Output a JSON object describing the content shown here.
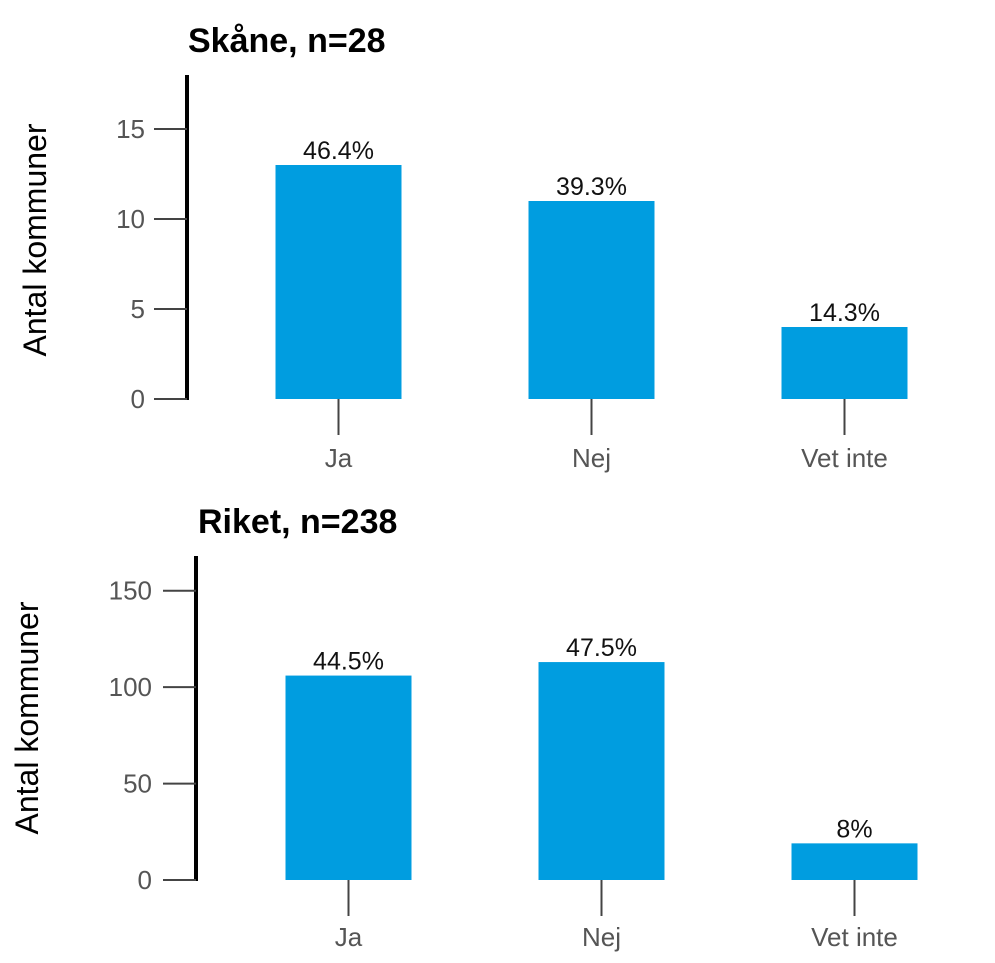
{
  "chart_data": [
    {
      "type": "bar",
      "title": "Skåne, n=28",
      "xlabel": "",
      "ylabel": "Antal kommuner",
      "categories": [
        "Ja",
        "Nej",
        "Vet inte"
      ],
      "values": [
        13,
        11,
        4
      ],
      "data_labels": [
        "46.4%",
        "39.3%",
        "14.3%"
      ],
      "yticks": [
        0,
        5,
        10,
        15
      ],
      "ylim": [
        0,
        18
      ],
      "grid": false,
      "legend": "none",
      "bar_color": "#009de0"
    },
    {
      "type": "bar",
      "title": "Riket, n=238",
      "xlabel": "",
      "ylabel": "Antal kommuner",
      "categories": [
        "Ja",
        "Nej",
        "Vet inte"
      ],
      "values": [
        106,
        113,
        19
      ],
      "data_labels": [
        "44.5%",
        "47.5%",
        "8%"
      ],
      "yticks": [
        0,
        50,
        100,
        150
      ],
      "ylim": [
        0,
        168
      ],
      "grid": false,
      "legend": "none",
      "bar_color": "#009de0"
    }
  ]
}
